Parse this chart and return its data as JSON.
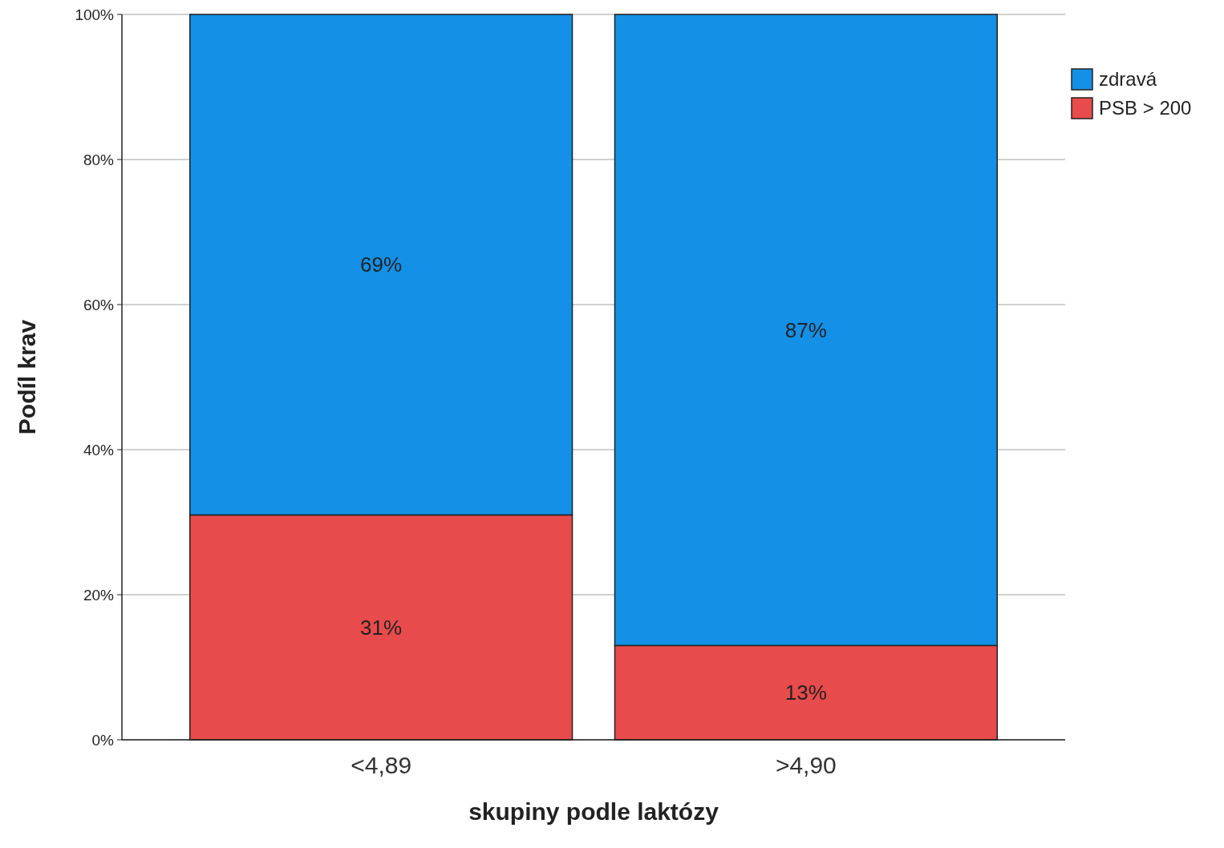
{
  "chart_data": {
    "type": "bar",
    "stacked": true,
    "xlabel": "skupiny podle laktózy",
    "ylabel": "Podíl krav",
    "categories": [
      "<4,89",
      ">4,90"
    ],
    "series": [
      {
        "name": "PSB > 200",
        "color": "#e84b4b",
        "values": [
          31,
          13
        ],
        "value_labels": [
          "31%",
          "13%"
        ]
      },
      {
        "name": "zdravá",
        "color": "#1490e6",
        "values": [
          69,
          87
        ],
        "value_labels": [
          "69%",
          "87%"
        ]
      }
    ],
    "ylim": [
      0,
      100
    ],
    "yticks": [
      {
        "value": 0,
        "label": "0%"
      },
      {
        "value": 20,
        "label": "20%"
      },
      {
        "value": 40,
        "label": "40%"
      },
      {
        "value": 60,
        "label": "60%"
      },
      {
        "value": 80,
        "label": "80%"
      },
      {
        "value": 100,
        "label": "100%"
      }
    ],
    "grid": "y",
    "legend": "top right"
  }
}
